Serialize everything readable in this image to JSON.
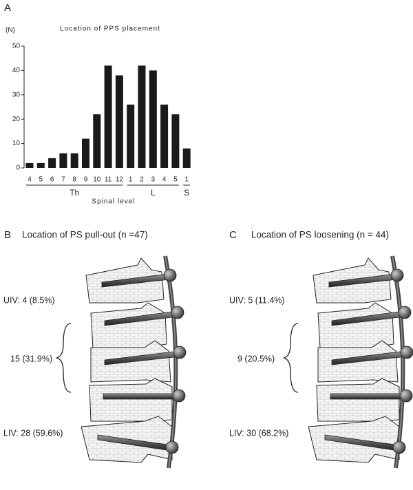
{
  "chart_data": {
    "type": "bar",
    "panel_label": "A",
    "title": "Location of PPS placement",
    "y_unit": "(N)",
    "xlabel": "Spinal level",
    "color": "#1a1a1a",
    "groups": [
      {
        "label": "Th",
        "categories": [
          "4",
          "5",
          "6",
          "7",
          "8",
          "9",
          "10",
          "11",
          "12"
        ],
        "values": [
          2,
          2,
          4,
          6,
          6,
          12,
          22,
          42,
          38
        ]
      },
      {
        "label": "L",
        "categories": [
          "1",
          "2",
          "3",
          "4",
          "5"
        ],
        "values": [
          26,
          42,
          40,
          26,
          22
        ]
      },
      {
        "label": "S",
        "categories": [
          "1"
        ],
        "values": [
          8
        ]
      }
    ],
    "ylim": [
      0,
      50
    ],
    "yticks": [
      0,
      10,
      20,
      30,
      40,
      50
    ]
  },
  "diagrams": [
    {
      "panel_label": "B",
      "title": "Location of PS pull-out (n =47)",
      "labels": [
        "UIV: 4 (8.5%)",
        "15 (31.9%)",
        "LIV: 28 (59.6%)"
      ]
    },
    {
      "panel_label": "C",
      "title": "Location of PS loosening (n = 44)",
      "labels": [
        "UIV: 5 (11.4%)",
        "9 (20.5%)",
        "LIV: 30 (68.2%)"
      ]
    }
  ]
}
